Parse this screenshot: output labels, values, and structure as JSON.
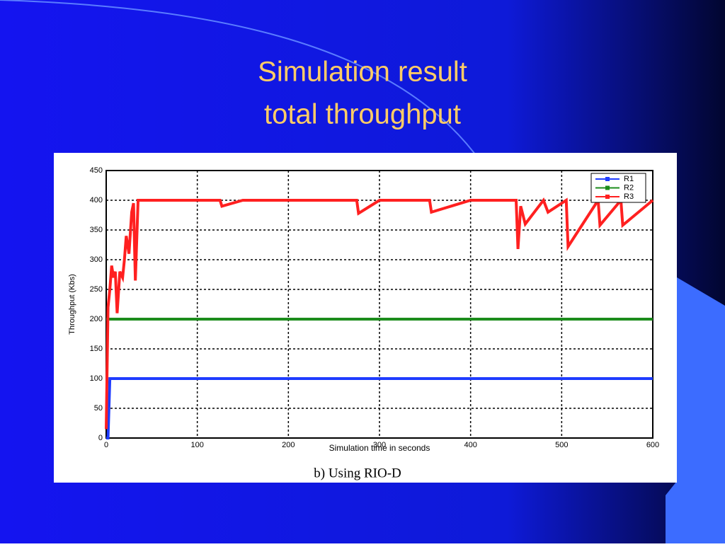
{
  "chart_data": {
    "type": "line",
    "title": "Simulation result",
    "subtitle": "total throughput",
    "caption": "b) Using RIO-D",
    "x_label": "Simulation time in seconds",
    "y_label": "Throughput (Kbs)",
    "x": [
      0,
      2,
      4,
      6,
      8,
      10,
      12,
      15,
      18,
      20,
      22,
      25,
      28,
      30,
      32,
      35,
      40,
      50,
      100,
      125,
      127,
      150,
      200,
      275,
      277,
      300,
      355,
      357,
      400,
      450,
      452,
      455,
      460,
      480,
      485,
      505,
      507,
      540,
      542,
      565,
      567,
      600
    ],
    "series": [
      {
        "name": "R1",
        "color": "#1f3cff",
        "values": [
          0,
          0,
          100,
          100,
          100,
          100,
          100,
          100,
          100,
          100,
          100,
          100,
          100,
          100,
          100,
          100,
          100,
          100,
          100,
          100,
          100,
          100,
          100,
          100,
          100,
          100,
          100,
          100,
          100,
          100,
          100,
          100,
          100,
          100,
          100,
          100,
          100,
          100,
          100,
          100,
          100,
          100
        ]
      },
      {
        "name": "R2",
        "color": "#1c8c1c",
        "values": [
          200,
          200,
          200,
          200,
          200,
          200,
          200,
          200,
          200,
          200,
          200,
          200,
          200,
          200,
          200,
          200,
          200,
          200,
          200,
          200,
          200,
          200,
          200,
          200,
          200,
          200,
          200,
          200,
          200,
          200,
          200,
          200,
          200,
          200,
          200,
          200,
          200,
          200,
          200,
          200,
          200,
          200
        ]
      },
      {
        "name": "R3",
        "color": "#ff2020",
        "values": [
          15,
          220,
          250,
          290,
          270,
          280,
          210,
          280,
          270,
          300,
          340,
          310,
          380,
          395,
          265,
          400,
          400,
          400,
          400,
          400,
          390,
          400,
          400,
          400,
          378,
          400,
          400,
          380,
          400,
          400,
          318,
          390,
          360,
          400,
          380,
          400,
          322,
          400,
          358,
          400,
          358,
          400
        ]
      }
    ],
    "xlim": [
      0,
      600
    ],
    "xticks": [
      0,
      100,
      200,
      300,
      400,
      500,
      600
    ],
    "ylim": [
      0,
      450
    ],
    "yticks": [
      0,
      50,
      100,
      150,
      200,
      250,
      300,
      350,
      400,
      450
    ],
    "grid": true,
    "legend": "upper right"
  }
}
